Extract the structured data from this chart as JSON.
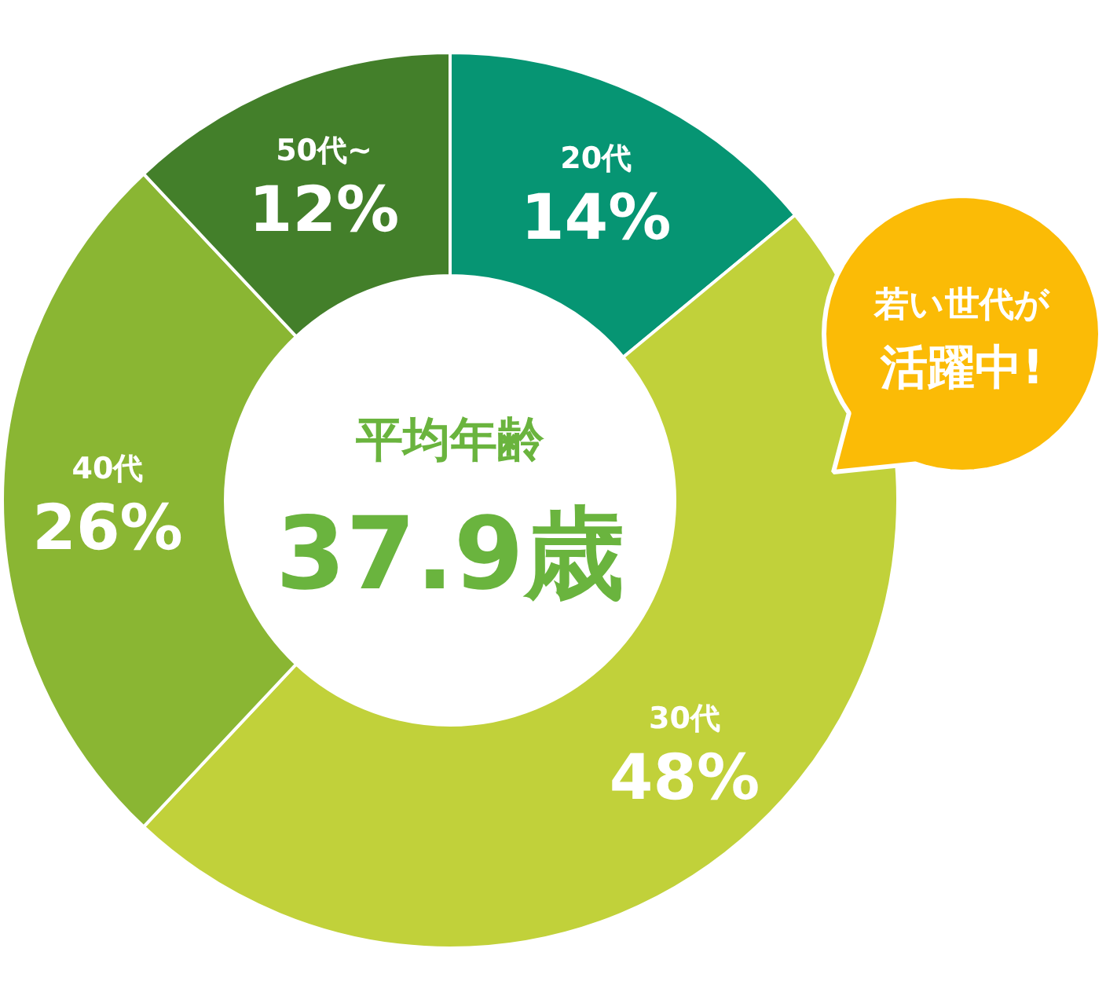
{
  "chart_data": {
    "type": "donut",
    "categories": [
      "20代",
      "30代",
      "40代",
      "50代~"
    ],
    "values": [
      14,
      48,
      26,
      12
    ],
    "colors": [
      "#069573",
      "#c1d13a",
      "#8ab633",
      "#437f2a"
    ],
    "value_labels": [
      "14%",
      "48%",
      "26%",
      "12%"
    ],
    "annotations": [
      "平均年齢",
      "37.9歳",
      "若い世代が",
      "活躍中!"
    ]
  }
}
